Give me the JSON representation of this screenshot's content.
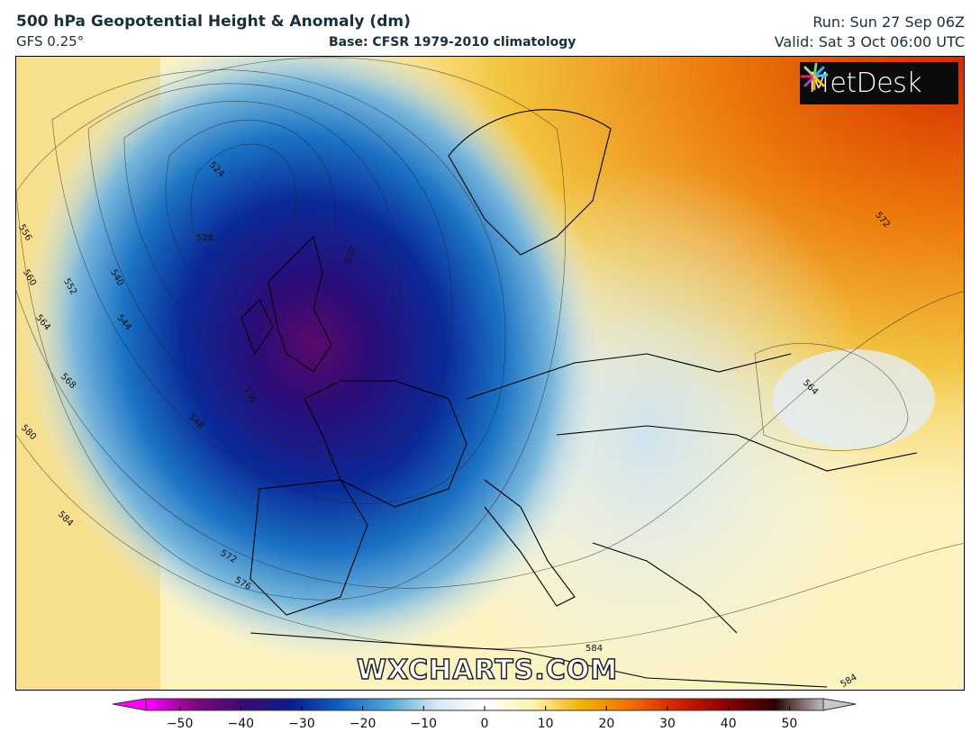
{
  "header": {
    "title": "500 hPa Geopotential Height & Anomaly (dm)",
    "model": "GFS 0.25°",
    "base": "Base: CFSR 1979-2010 climatology",
    "run": "Run: Sun 27 Sep 06Z",
    "valid": "Valid: Sat 3 Oct 06:00 UTC"
  },
  "logo": {
    "text": "MetDesk",
    "icon": "metdesk-pinwheel-icon"
  },
  "watermark": "WXCHARTS.COM",
  "contour_labels": [
    "524",
    "528",
    "532",
    "536",
    "540",
    "544",
    "548",
    "552",
    "556",
    "560",
    "564",
    "568",
    "572",
    "576",
    "580",
    "584",
    "564",
    "572",
    "584",
    "584"
  ],
  "colorbar": {
    "ticks": [
      -50,
      -40,
      -30,
      -20,
      -10,
      0,
      10,
      20,
      30,
      40,
      50
    ],
    "tick_labels": [
      "−50",
      "−40",
      "−30",
      "−20",
      "−10",
      "0",
      "10",
      "20",
      "30",
      "40",
      "50"
    ],
    "colors": [
      "#ff00ff",
      "#7a0a7a",
      "#3a0c6e",
      "#0a1c8c",
      "#1060c0",
      "#4ea6d6",
      "#d6e8f2",
      "#ffffff",
      "#fff3b0",
      "#f0b400",
      "#f07000",
      "#d22000",
      "#8a0000",
      "#2a0000",
      "#bdbdbd"
    ]
  }
}
